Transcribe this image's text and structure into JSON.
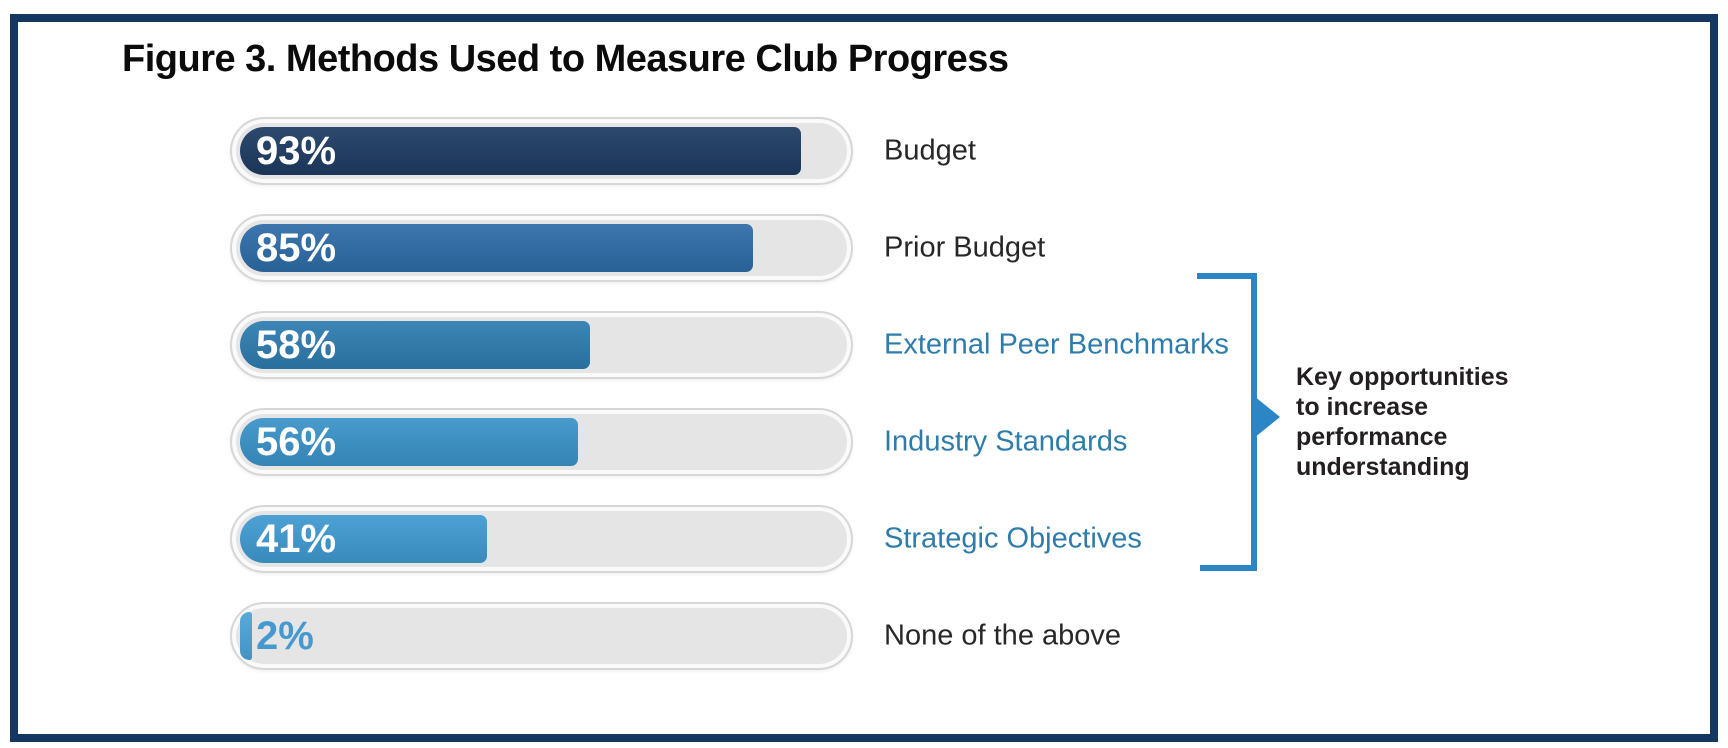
{
  "figure": {
    "title": "Figure 3. Methods Used to Measure Club Progress",
    "border_color": "#143862",
    "background_color": "#ffffff"
  },
  "chart_data": {
    "type": "bar",
    "orientation": "horizontal",
    "title": "Figure 3. Methods Used to Measure Club Progress",
    "categories": [
      "Budget",
      "Prior Budget",
      "External Peer Benchmarks",
      "Industry Standards",
      "Strategic Objectives",
      "None of the above"
    ],
    "values": [
      93,
      85,
      58,
      56,
      41,
      2
    ],
    "value_labels": [
      "93%",
      "85%",
      "58%",
      "56%",
      "41%",
      "2%"
    ],
    "xlim": [
      0,
      100
    ],
    "grid": false,
    "legend": false,
    "bar_colors": [
      "#1d3b62",
      "#2d6ca7",
      "#2e7caf",
      "#3a93c9",
      "#3f9ad1",
      "#4ba4d9"
    ],
    "value_label_colors": [
      "#ffffff",
      "#ffffff",
      "#ffffff",
      "#ffffff",
      "#ffffff",
      "#4699cf"
    ],
    "category_label_colors": [
      "#272727",
      "#272727",
      "#2e7cab",
      "#2e7cab",
      "#2e7cab",
      "#272727"
    ],
    "track_color": "#e5e5e6"
  },
  "annotation": {
    "text": "Key opportunities\nto increase\nperformance\nunderstanding",
    "bracket_color": "#2c85c4",
    "grouped_categories": [
      "External Peer Benchmarks",
      "Industry Standards",
      "Strategic Objectives"
    ]
  }
}
